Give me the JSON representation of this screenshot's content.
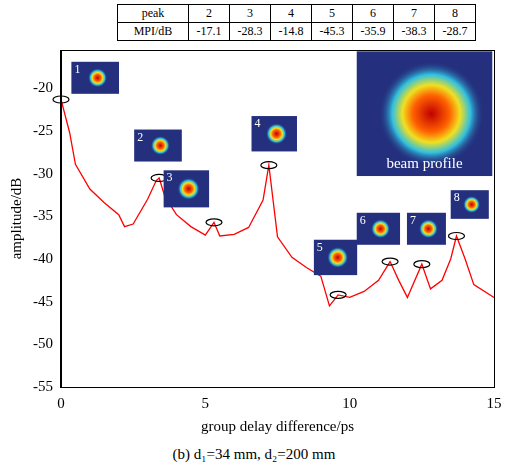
{
  "chart_data": {
    "type": "line",
    "xlabel": "group delay difference/ps",
    "ylabel": "amplitude/dB",
    "caption": "(b) d₁=34 mm, d₂=200 mm",
    "annotation": "beam profile",
    "color": "#ff0000",
    "x": [
      0,
      0.3,
      0.5,
      1,
      1.5,
      2,
      2.2,
      2.5,
      3,
      3.3,
      3.4,
      3.6,
      4,
      4.5,
      5,
      5.3,
      5.5,
      6,
      6.5,
      7,
      7.2,
      7.5,
      8,
      8.5,
      9,
      9.3,
      9.6,
      10,
      10.5,
      11,
      11.4,
      11.7,
      12,
      12.5,
      12.8,
      13.2,
      13.5,
      13.7,
      14,
      14.3,
      15
    ],
    "values": [
      -21.3,
      -25.2,
      -28.9,
      -31.8,
      -33.4,
      -34.8,
      -36.2,
      -35.9,
      -33,
      -30.8,
      -30.5,
      -32.7,
      -34.8,
      -36.2,
      -37.2,
      -35.7,
      -37.3,
      -37.1,
      -36.3,
      -33.1,
      -29,
      -37.4,
      -39.8,
      -41,
      -42,
      -45.5,
      -44.2,
      -44.5,
      -43.8,
      -42.5,
      -40.3,
      -42.5,
      -44.5,
      -40.6,
      -43.5,
      -42.5,
      -40,
      -37.3,
      -40,
      -43,
      -44.5
    ],
    "peaks": [
      {
        "label": "1",
        "x": 0,
        "y": -21.3
      },
      {
        "label": "2",
        "x": 3.4,
        "y": -30.5
      },
      {
        "label": "3",
        "x": 5.3,
        "y": -35.7
      },
      {
        "label": "4",
        "x": 7.2,
        "y": -29
      },
      {
        "label": "5",
        "x": 9.6,
        "y": -44.2
      },
      {
        "label": "6",
        "x": 11.4,
        "y": -40.3
      },
      {
        "label": "7",
        "x": 12.5,
        "y": -40.6
      },
      {
        "label": "8",
        "x": 13.7,
        "y": -37.3
      }
    ],
    "xlim": [
      0,
      15
    ],
    "xticks": [
      0,
      5,
      10,
      15
    ],
    "ylim": [
      -55,
      -15.5
    ],
    "yticks": [
      -55,
      -50,
      -45,
      -40,
      -35,
      -30,
      -25,
      -20
    ],
    "grid": false
  },
  "table": {
    "row_labels": [
      "peak",
      "MPI/dB"
    ],
    "peaks": [
      "2",
      "3",
      "4",
      "5",
      "6",
      "7",
      "8"
    ],
    "mpi": [
      -17.1,
      -28.3,
      -14.8,
      -45.3,
      -35.9,
      -38.3,
      -28.7
    ]
  }
}
